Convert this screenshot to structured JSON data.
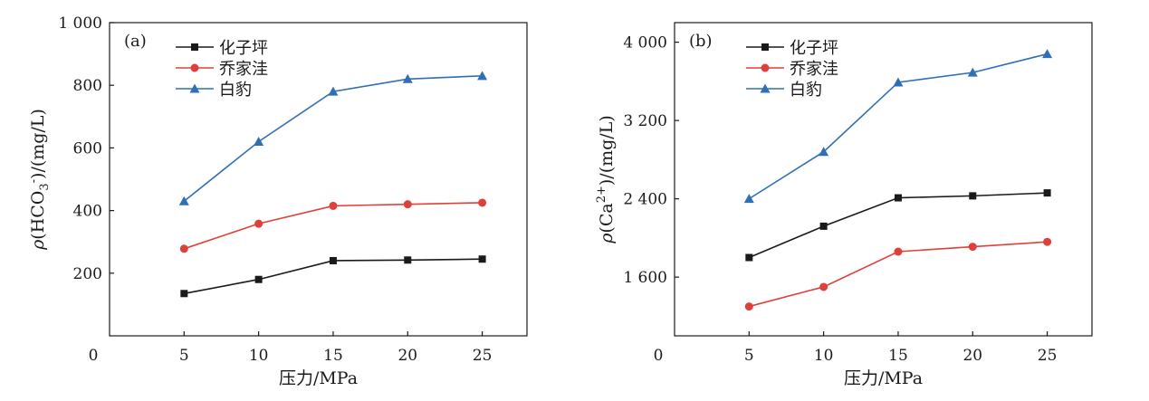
{
  "chart_data": [
    {
      "type": "line",
      "panel_label": "(a)",
      "x": [
        5,
        10,
        15,
        20,
        25
      ],
      "x_ticks": [
        "0",
        "5",
        "10",
        "15",
        "20",
        "25"
      ],
      "xlim": [
        0,
        28
      ],
      "ylim": [
        0,
        1000
      ],
      "y_ticks": [
        {
          "value": 200,
          "label": "200"
        },
        {
          "value": 400,
          "label": "400"
        },
        {
          "value": 600,
          "label": "600"
        },
        {
          "value": 800,
          "label": "800"
        },
        {
          "value": 1000,
          "label": "1 000"
        }
      ],
      "xlabel": "压力/MPa",
      "ylabel": "ρ(HCO3-)/(mg/L)",
      "legend_position": "top-left",
      "grid": false,
      "series": [
        {
          "name": "化子坪",
          "color": "#1a1a1a",
          "marker": "square",
          "values": [
            135,
            180,
            240,
            242,
            245
          ]
        },
        {
          "name": "乔家洼",
          "color": "#e0403a",
          "marker": "circle",
          "values": [
            278,
            358,
            415,
            420,
            425
          ]
        },
        {
          "name": "白豹",
          "color": "#2f6fb5",
          "marker": "triangle",
          "values": [
            430,
            620,
            780,
            820,
            830
          ]
        }
      ]
    },
    {
      "type": "line",
      "panel_label": "(b)",
      "x": [
        5,
        10,
        15,
        20,
        25
      ],
      "x_ticks": [
        "0",
        "5",
        "10",
        "15",
        "20",
        "25"
      ],
      "xlim": [
        0,
        28
      ],
      "ylim": [
        1000,
        4200
      ],
      "y_ticks": [
        {
          "value": 1600,
          "label": "1 600"
        },
        {
          "value": 2400,
          "label": "2 400"
        },
        {
          "value": 3200,
          "label": "3 200"
        },
        {
          "value": 4000,
          "label": "4 000"
        }
      ],
      "xlabel": "压力/MPa",
      "ylabel": "ρ(Ca2+)/(mg/L)",
      "legend_position": "top-left",
      "grid": false,
      "series": [
        {
          "name": "化子坪",
          "color": "#1a1a1a",
          "marker": "square",
          "values": [
            1800,
            2120,
            2410,
            2430,
            2460
          ]
        },
        {
          "name": "乔家洼",
          "color": "#e0403a",
          "marker": "circle",
          "values": [
            1300,
            1500,
            1860,
            1910,
            1960
          ]
        },
        {
          "name": "白豹",
          "color": "#2f6fb5",
          "marker": "triangle",
          "values": [
            2400,
            2880,
            3590,
            3690,
            3880
          ]
        }
      ]
    }
  ]
}
